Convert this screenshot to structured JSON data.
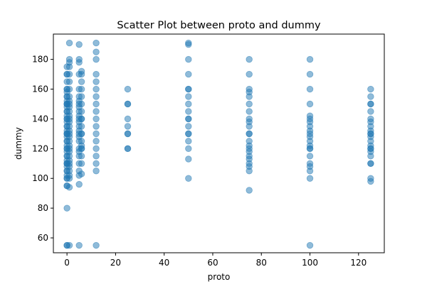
{
  "chart_data": {
    "type": "scatter",
    "title": "Scatter Plot between proto and dummy",
    "xlabel": "proto",
    "ylabel": "dummy",
    "xlim": [
      -5.6,
      130.6
    ],
    "ylim": [
      50.0,
      197.0
    ],
    "xticks": [
      0,
      20,
      40,
      60,
      80,
      100,
      120
    ],
    "yticks": [
      60,
      80,
      100,
      120,
      140,
      160,
      180
    ],
    "grid": false,
    "legend": "none",
    "marker_color": "#1f77b4",
    "marker_alpha": 0.5,
    "series": [
      {
        "x": [
          0,
          0,
          0,
          0,
          0,
          0,
          0,
          0,
          0,
          0,
          0,
          0,
          0,
          0,
          0,
          0,
          0,
          0,
          0,
          0,
          0,
          0,
          0,
          0,
          0,
          0,
          0,
          0,
          0,
          0,
          0,
          0,
          0,
          0,
          0,
          0,
          0,
          0,
          0,
          0,
          0,
          0,
          0,
          0,
          0,
          0,
          0,
          0,
          0,
          0,
          1,
          1,
          1,
          1,
          1,
          1,
          1,
          1,
          1,
          1,
          1,
          1,
          1,
          1,
          1,
          1,
          1,
          1,
          1,
          1,
          1,
          1,
          1,
          1,
          1,
          1,
          1,
          1,
          1,
          1,
          1,
          1,
          5,
          5,
          5,
          5,
          5,
          5,
          5,
          5,
          5,
          5,
          5,
          5,
          5,
          5,
          5,
          5,
          5,
          5,
          5,
          5,
          5,
          5,
          5,
          5,
          5,
          5,
          6,
          6,
          6,
          6,
          6,
          6,
          6,
          6,
          6,
          6,
          6,
          6,
          6,
          6,
          6,
          6,
          6,
          6,
          6,
          12,
          12,
          12,
          12,
          12,
          12,
          12,
          12,
          12,
          12,
          12,
          12,
          12,
          12,
          12,
          12,
          12,
          12,
          25,
          25,
          25,
          25,
          25,
          25,
          25,
          25,
          25,
          50,
          50,
          50,
          50,
          50,
          50,
          50,
          50,
          50,
          50,
          50,
          50,
          50,
          50,
          50,
          50,
          50,
          50,
          75,
          75,
          75,
          75,
          75,
          75,
          75,
          75,
          75,
          75,
          75,
          75,
          75,
          75,
          75,
          75,
          75,
          75,
          75,
          75,
          75,
          75,
          100,
          100,
          100,
          100,
          100,
          100,
          100,
          100,
          100,
          100,
          100,
          100,
          100,
          100,
          100,
          100,
          100,
          100,
          100,
          100,
          100,
          125,
          125,
          125,
          125,
          125,
          125,
          125,
          125,
          125,
          125,
          125,
          125,
          125,
          125,
          125,
          125,
          125,
          125,
          125,
          125,
          125,
          125
        ],
        "y": [
          55,
          80,
          95,
          100,
          102,
          105,
          108,
          110,
          112,
          115,
          118,
          120,
          122,
          125,
          128,
          130,
          132,
          135,
          138,
          140,
          142,
          145,
          148,
          150,
          152,
          155,
          158,
          160,
          170,
          175,
          55,
          95,
          100,
          105,
          110,
          115,
          120,
          125,
          130,
          135,
          140,
          145,
          150,
          155,
          160,
          165,
          170,
          110,
          130,
          150,
          55,
          94,
          100,
          102,
          105,
          108,
          110,
          112,
          115,
          118,
          120,
          122,
          125,
          128,
          130,
          132,
          135,
          138,
          140,
          142,
          145,
          148,
          150,
          155,
          160,
          165,
          170,
          175,
          178,
          180,
          191,
          152,
          55,
          96,
          102,
          105,
          110,
          115,
          120,
          125,
          130,
          132,
          135,
          138,
          140,
          142,
          145,
          148,
          150,
          152,
          155,
          160,
          170,
          178,
          180,
          190,
          118,
          128,
          103,
          110,
          115,
          120,
          122,
          125,
          130,
          135,
          140,
          145,
          150,
          155,
          160,
          165,
          170,
          172,
          120,
          140,
          130,
          55,
          105,
          110,
          115,
          120,
          125,
          130,
          135,
          140,
          145,
          150,
          155,
          160,
          165,
          170,
          180,
          185,
          191,
          120,
          130,
          135,
          140,
          150,
          160,
          130,
          150,
          120,
          100,
          113,
          120,
          125,
          130,
          135,
          140,
          145,
          150,
          155,
          160,
          170,
          180,
          190,
          191,
          140,
          130,
          160,
          92,
          105,
          108,
          110,
          113,
          115,
          118,
          120,
          122,
          125,
          130,
          135,
          138,
          140,
          145,
          150,
          155,
          158,
          160,
          170,
          180,
          130,
          55,
          100,
          105,
          108,
          110,
          115,
          120,
          122,
          125,
          128,
          130,
          132,
          135,
          138,
          140,
          142,
          150,
          160,
          170,
          180,
          120,
          98,
          100,
          110,
          115,
          118,
          120,
          122,
          125,
          128,
          130,
          132,
          135,
          138,
          140,
          145,
          150,
          155,
          160,
          130,
          120,
          110,
          150
        ]
      }
    ]
  }
}
